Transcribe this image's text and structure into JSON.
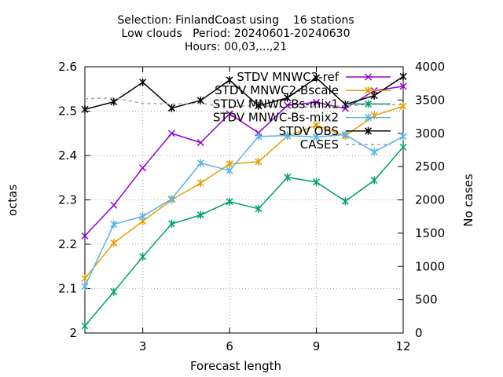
{
  "chart_data": {
    "type": "line",
    "title_lines": [
      "Selection: FinlandCoast using    16 stations",
      "Low clouds   Period: 20240601-20240630",
      "Hours: 00,03,...,21"
    ],
    "xlabel": "Forecast length",
    "ylabel": "octas",
    "y2label": "No cases",
    "xlim": [
      1,
      12
    ],
    "ylim": [
      2.0,
      2.6
    ],
    "y2lim": [
      0,
      4000
    ],
    "xticks": [
      "3",
      "6",
      "9",
      "12"
    ],
    "yticks": [
      "2",
      "2.1",
      "2.2",
      "2.3",
      "2.4",
      "2.5",
      "2.6"
    ],
    "y2ticks": [
      "0",
      "500",
      "1000",
      "1500",
      "2000",
      "2500",
      "3000",
      "3500",
      "4000"
    ],
    "grid": true,
    "legend_position": "top-right",
    "x": [
      1,
      2,
      3,
      4,
      5,
      6,
      7,
      8,
      9,
      10,
      11,
      12
    ],
    "series": [
      {
        "name": "STDV MNWC2-ref",
        "color": "#9400d3",
        "axis": "y",
        "values": [
          2.219,
          2.288,
          2.372,
          2.45,
          2.429,
          2.494,
          2.451,
          2.513,
          2.52,
          2.506,
          2.546,
          2.556
        ]
      },
      {
        "name": "STDV MNWC2-Bscale",
        "color": "#e69f00",
        "axis": "y",
        "values": [
          2.123,
          2.203,
          2.252,
          2.3,
          2.338,
          2.381,
          2.386,
          2.444,
          2.468,
          2.444,
          2.49,
          2.511
        ]
      },
      {
        "name": "STDV MNWC-Bs-mix1",
        "color": "#009e73",
        "axis": "y",
        "values": [
          2.016,
          2.093,
          2.172,
          2.246,
          2.266,
          2.296,
          2.28,
          2.351,
          2.34,
          2.297,
          2.344,
          2.419
        ]
      },
      {
        "name": "STDV MNWC-Bs-mix2",
        "color": "#56b4e9",
        "axis": "y",
        "values": [
          2.105,
          2.245,
          2.263,
          2.302,
          2.383,
          2.366,
          2.443,
          2.445,
          2.442,
          2.447,
          2.408,
          2.443
        ]
      },
      {
        "name": "STDV OBS",
        "color": "#000000",
        "axis": "y",
        "values": [
          2.504,
          2.521,
          2.565,
          2.507,
          2.524,
          2.57,
          2.512,
          2.53,
          2.575,
          2.515,
          2.535,
          2.578
        ]
      },
      {
        "name": "CASES",
        "color": "#a0a0a0",
        "axis": "y2",
        "dashed": true,
        "values": [
          3520,
          3530,
          3450,
          3440,
          3450,
          3400,
          3420,
          3390,
          3400,
          3410,
          3440,
          3430
        ]
      }
    ]
  }
}
